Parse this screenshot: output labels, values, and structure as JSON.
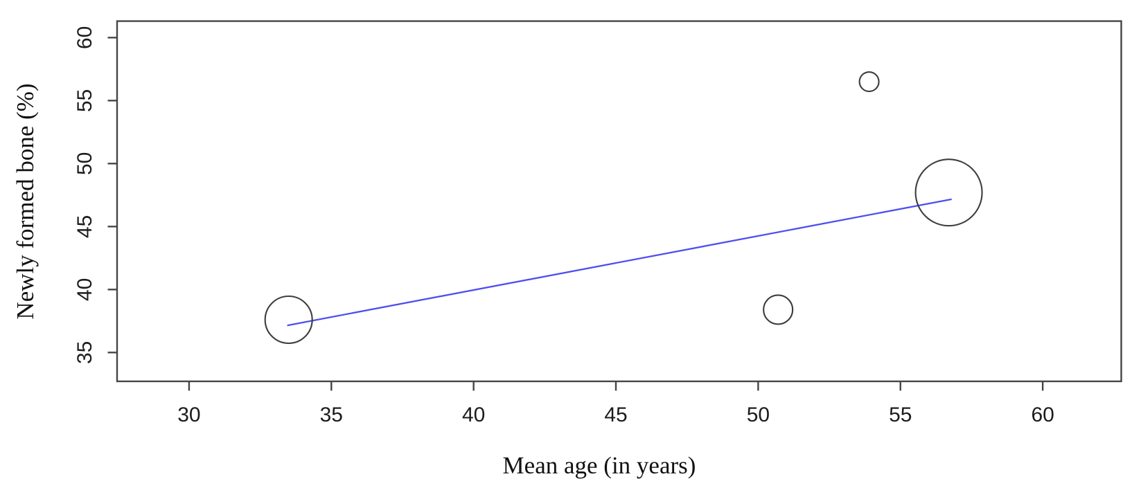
{
  "figure": {
    "background": "#ffffff",
    "kind": "meta-regression bubble plot"
  },
  "chart_data": {
    "type": "scatter",
    "subtype": "bubble",
    "title": "",
    "xlabel": "Mean age (in years)",
    "ylabel": "Newly formed bone (%)",
    "xlim": [
      27.47,
      62.76
    ],
    "ylim": [
      32.71,
      61.31
    ],
    "x_ticks": [
      30,
      35,
      40,
      45,
      50,
      55,
      60
    ],
    "y_ticks": [
      35,
      40,
      45,
      50,
      55,
      60
    ],
    "grid": false,
    "legend": null,
    "points": [
      {
        "x": 33.5,
        "y": 37.6,
        "radius_px": 34
      },
      {
        "x": 50.7,
        "y": 38.4,
        "radius_px": 21
      },
      {
        "x": 53.9,
        "y": 56.5,
        "radius_px": 14
      },
      {
        "x": 56.7,
        "y": 47.7,
        "radius_px": 48
      }
    ],
    "regression_line": {
      "x1": 33.45,
      "y1": 37.15,
      "x2": 56.8,
      "y2": 47.17
    },
    "colors": {
      "regression_line": "#4d4df2",
      "bubble_stroke": "#3d3d3d",
      "axis": "#454545",
      "text": "#1c1c1c"
    }
  }
}
